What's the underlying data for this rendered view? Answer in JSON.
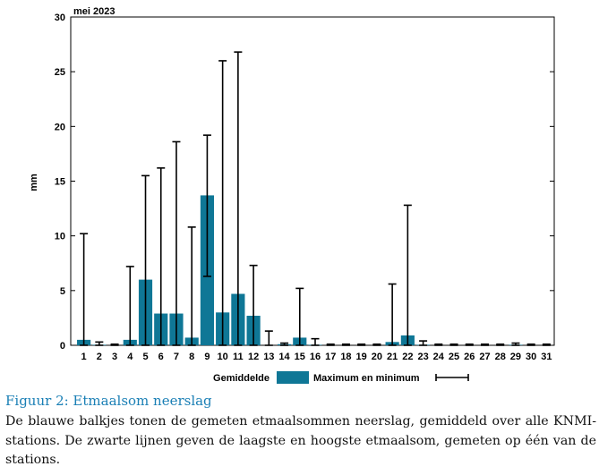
{
  "chart_data": {
    "type": "bar",
    "title": "mei 2023",
    "ylabel": "mm",
    "xlabel": "",
    "ylim": [
      0,
      30
    ],
    "yticks": [
      0,
      5,
      10,
      15,
      20,
      25,
      30
    ],
    "categories": [
      "1",
      "2",
      "3",
      "4",
      "5",
      "6",
      "7",
      "8",
      "9",
      "10",
      "11",
      "12",
      "13",
      "14",
      "15",
      "16",
      "17",
      "18",
      "19",
      "20",
      "21",
      "22",
      "23",
      "24",
      "25",
      "26",
      "27",
      "28",
      "29",
      "30",
      "31"
    ],
    "series": [
      {
        "name": "Gemiddelde",
        "color": "#0f7796",
        "values": [
          0.5,
          0.05,
          0.0,
          0.5,
          6.0,
          2.9,
          2.9,
          0.7,
          13.7,
          3.0,
          4.7,
          2.7,
          0.0,
          0.1,
          0.7,
          0.05,
          0.0,
          0.0,
          0.0,
          0.0,
          0.3,
          0.9,
          0.05,
          0.0,
          0.0,
          0.0,
          0.0,
          0.0,
          0.05,
          0.0,
          0.0
        ]
      },
      {
        "name": "Maximum en minimum",
        "min": [
          0,
          0,
          0,
          0,
          0,
          0,
          0,
          0,
          6.3,
          0,
          0,
          0,
          0,
          0,
          0,
          0,
          0,
          0,
          0,
          0,
          0,
          0,
          0,
          0,
          0,
          0,
          0,
          0,
          0,
          0,
          0
        ],
        "max": [
          10.2,
          0.3,
          0.1,
          7.2,
          15.5,
          16.2,
          18.6,
          10.8,
          19.2,
          26.0,
          26.8,
          7.3,
          1.3,
          0.2,
          5.2,
          0.6,
          0.1,
          0.1,
          0.1,
          0.1,
          5.6,
          12.8,
          0.4,
          0.1,
          0.1,
          0.1,
          0.1,
          0.1,
          0.2,
          0.1,
          0.1
        ]
      }
    ],
    "legend": [
      "Gemiddelde",
      "Maximum en minimum"
    ],
    "legend_position": "bottom"
  },
  "caption": "Figuur 2: Etmaalsom neerslag",
  "description": "De blauwe balkjes tonen de gemeten etmaalsommen neerslag, gemiddeld over alle KNMI-stations. De zwarte lijnen geven de laagste en hoogste etmaalsom, gemeten op één van de stations."
}
